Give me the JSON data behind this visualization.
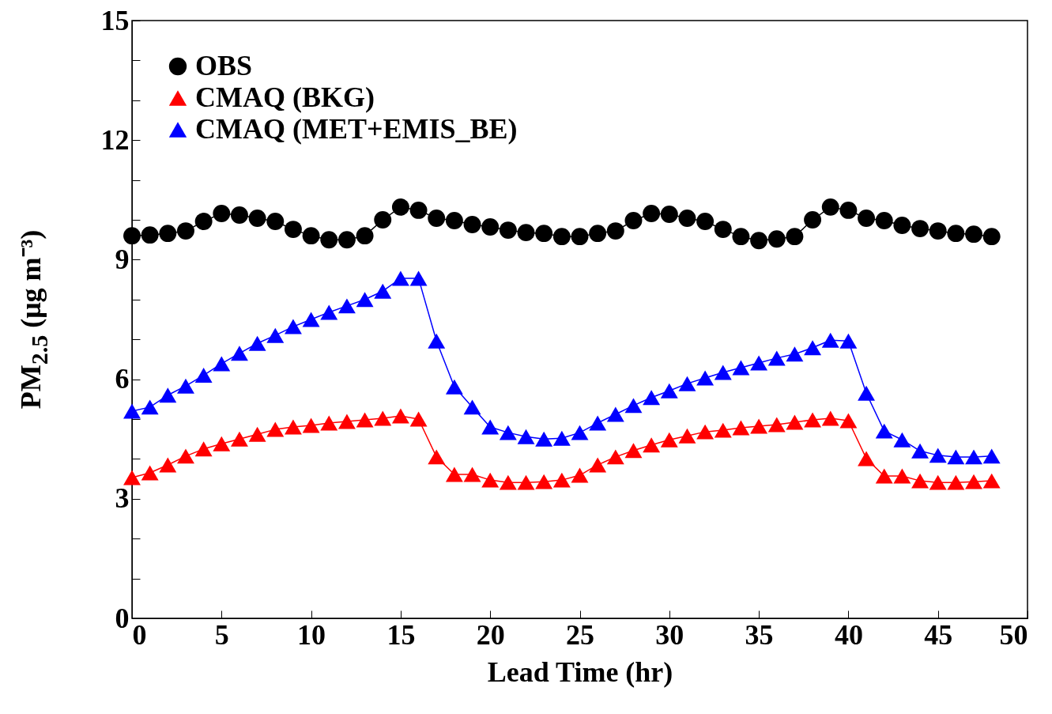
{
  "chart_data": {
    "type": "line",
    "xlabel": "Lead Time (hr)",
    "ylabel": "PM$_{2.5}$ (μg m⁻³)",
    "x": [
      0,
      1,
      2,
      3,
      4,
      5,
      6,
      7,
      8,
      9,
      10,
      11,
      12,
      13,
      14,
      15,
      16,
      17,
      18,
      19,
      20,
      21,
      22,
      23,
      24,
      25,
      26,
      27,
      28,
      29,
      30,
      31,
      32,
      33,
      34,
      35,
      36,
      37,
      38,
      39,
      40,
      41,
      42,
      43,
      44,
      45,
      46,
      47,
      48
    ],
    "series": [
      {
        "name": "OBS",
        "color": "#000000",
        "marker": "circle",
        "values": [
          9.6,
          9.62,
          9.66,
          9.72,
          9.96,
          10.16,
          10.12,
          10.04,
          9.96,
          9.76,
          9.6,
          9.5,
          9.5,
          9.6,
          10.0,
          10.32,
          10.24,
          10.04,
          9.98,
          9.88,
          9.82,
          9.74,
          9.68,
          9.66,
          9.58,
          9.58,
          9.66,
          9.72,
          9.98,
          10.16,
          10.14,
          10.04,
          9.96,
          9.76,
          9.58,
          9.48,
          9.52,
          9.58,
          10.0,
          10.32,
          10.24,
          10.04,
          9.98,
          9.86,
          9.78,
          9.72,
          9.66,
          9.64,
          9.58
        ]
      },
      {
        "name": "CMAQ (BKG)",
        "color": "#ff0000",
        "marker": "triangle",
        "values": [
          3.53,
          3.65,
          3.85,
          4.07,
          4.25,
          4.38,
          4.5,
          4.62,
          4.74,
          4.8,
          4.84,
          4.9,
          4.94,
          4.98,
          5.02,
          5.08,
          5.0,
          4.05,
          3.61,
          3.61,
          3.47,
          3.41,
          3.41,
          3.43,
          3.47,
          3.59,
          3.85,
          4.05,
          4.21,
          4.35,
          4.48,
          4.58,
          4.68,
          4.72,
          4.78,
          4.82,
          4.86,
          4.92,
          4.98,
          5.02,
          4.96,
          4.01,
          3.57,
          3.57,
          3.45,
          3.41,
          3.41,
          3.43,
          3.45
        ]
      },
      {
        "name": "CMAQ (MET+EMIS_BE)",
        "color": "#0000ff",
        "marker": "triangle",
        "values": [
          5.2,
          5.3,
          5.6,
          5.83,
          6.1,
          6.39,
          6.65,
          6.9,
          7.1,
          7.32,
          7.5,
          7.68,
          7.84,
          8.0,
          8.21,
          8.53,
          8.53,
          6.96,
          5.81,
          5.3,
          4.8,
          4.66,
          4.56,
          4.5,
          4.52,
          4.66,
          4.9,
          5.12,
          5.34,
          5.54,
          5.71,
          5.89,
          6.03,
          6.17,
          6.29,
          6.41,
          6.53,
          6.63,
          6.79,
          6.98,
          6.96,
          5.65,
          4.7,
          4.48,
          4.2,
          4.09,
          4.05,
          4.05,
          4.07
        ]
      }
    ],
    "xlim": [
      0,
      50
    ],
    "xticks": [
      0,
      5,
      10,
      15,
      20,
      25,
      30,
      35,
      40,
      45,
      50
    ],
    "ylim": [
      0,
      15
    ],
    "yticks": [
      0,
      {
        "value": 1,
        "label": null
      },
      {
        "value": 2,
        "label": null
      },
      3,
      {
        "value": 4,
        "label": null
      },
      {
        "value": 5,
        "label": null
      },
      6,
      {
        "value": 7,
        "label": null
      },
      {
        "value": 8,
        "label": null
      },
      9,
      {
        "value": 10,
        "label": null
      },
      {
        "value": 11,
        "label": null
      },
      12,
      {
        "value": 13,
        "label": null
      },
      {
        "value": 14,
        "label": null
      },
      15
    ],
    "grid": false,
    "legend": "top left",
    "line_style": "solid"
  }
}
